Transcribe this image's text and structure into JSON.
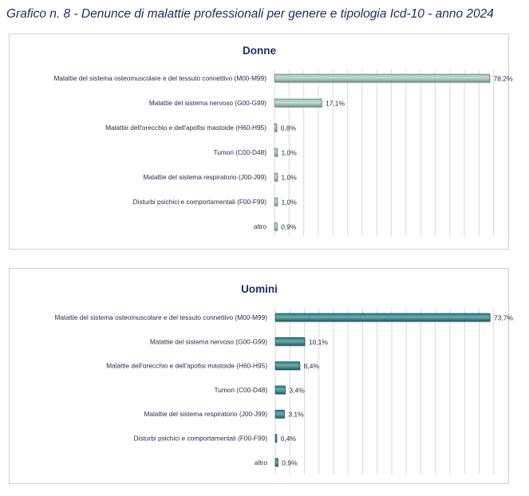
{
  "title": "Grafico n. 8 - Denunce di malattie professionali per genere e tipologia Icd-10 - anno 2024",
  "chart_data": [
    {
      "type": "bar",
      "orientation": "horizontal",
      "title": "Donne",
      "categories": [
        "Malattie del sistema osteomuscolare e del tessuto connettivo (M00-M99)",
        "Malattie del sistema nervoso (G00-G99)",
        "Malattie dell'orecchio e dell'apofisi mastoide (H60-H95)",
        "Tumori (C00-D48)",
        "Malattie del sistema respiratorio (J00-J99)",
        "Disturbi psichici e comportamentali (F00-F99)",
        "altro"
      ],
      "values": [
        78.2,
        17.1,
        0.8,
        1.0,
        1.0,
        1.0,
        0.9
      ],
      "value_labels": [
        "78,2%",
        "17,1%",
        "0,8%",
        "1,0%",
        "1,0%",
        "1,0%",
        "0,9%"
      ],
      "xlim": [
        0,
        85
      ],
      "grid": "vertical",
      "color": "#a3c9b9"
    },
    {
      "type": "bar",
      "orientation": "horizontal",
      "title": "Uomini",
      "categories": [
        "Malattie del sistema osteomuscolare e del tessuto connettivo (M00-M99)",
        "Malattie del sistema nervoso (G00-G99)",
        "Malattie dell'orecchio e dell'apofisi mastoide (H60-H95)",
        "Tumori (C00-D48)",
        "Malattie del sistema respiratorio (J00-J99)",
        "Disturbi psichici e comportamentali (F00-F99)",
        "altro"
      ],
      "values": [
        73.7,
        10.1,
        8.4,
        3.4,
        3.1,
        0.4,
        0.9
      ],
      "value_labels": [
        "73,7%",
        "10,1%",
        "8,4%",
        "3,4%",
        "3,1%",
        "0,4%",
        "0,9%"
      ],
      "xlim": [
        0,
        80
      ],
      "grid": "vertical",
      "color": "#237f83"
    }
  ]
}
